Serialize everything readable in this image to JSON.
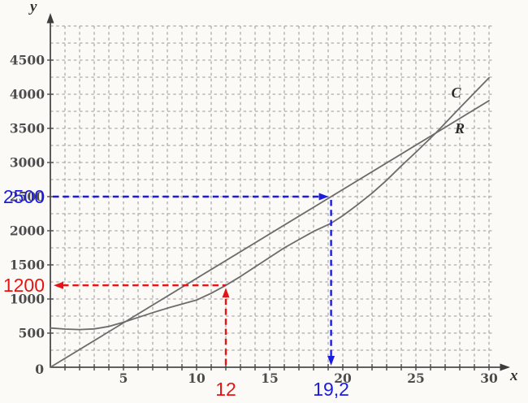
{
  "chart_data": {
    "type": "line",
    "title": "",
    "xlabel": "x",
    "ylabel": "y",
    "xlim": [
      0,
      31
    ],
    "ylim": [
      0,
      5050
    ],
    "x_tick_labels": [
      5,
      10,
      15,
      20,
      25,
      30
    ],
    "y_tick_labels": [
      0,
      500,
      1000,
      1500,
      2000,
      2500,
      3000,
      3500,
      4000,
      4500
    ],
    "x_grid_step": 1,
    "y_grid_step": 250,
    "x_grid_max": 30,
    "y_grid_max": 5000,
    "grid": true,
    "legend_position": "on-curve",
    "colors": {
      "grid": "#acacac",
      "axis": "#4a4a4a",
      "curves": "#6c6c6c",
      "annotation_red": "#e61414",
      "annotation_blue": "#1c1ce0"
    },
    "series": [
      {
        "name": "C",
        "label": "C",
        "style": "curve",
        "color": "#6c6c6c",
        "label_pos": {
          "x": 27.75,
          "y": 3955
        },
        "points": [
          [
            0,
            575
          ],
          [
            1,
            560
          ],
          [
            2,
            552
          ],
          [
            3,
            562
          ],
          [
            4,
            598
          ],
          [
            5,
            660
          ],
          [
            6,
            730
          ],
          [
            7,
            800
          ],
          [
            8,
            865
          ],
          [
            9,
            925
          ],
          [
            10,
            985
          ],
          [
            11,
            1085
          ],
          [
            12,
            1200
          ],
          [
            13,
            1330
          ],
          [
            14,
            1470
          ],
          [
            15,
            1610
          ],
          [
            16,
            1750
          ],
          [
            17,
            1870
          ],
          [
            18,
            1990
          ],
          [
            19.2,
            2110
          ],
          [
            20,
            2220
          ],
          [
            21,
            2380
          ],
          [
            22,
            2550
          ],
          [
            23,
            2740
          ],
          [
            24,
            2950
          ],
          [
            25,
            3150
          ],
          [
            26.4,
            3440
          ],
          [
            28,
            3800
          ],
          [
            30,
            4240
          ]
        ]
      },
      {
        "name": "R",
        "label": "R",
        "style": "line",
        "color": "#6c6c6c",
        "label_pos": {
          "x": 28.0,
          "y": 3430
        },
        "points": [
          [
            0,
            0
          ],
          [
            30,
            3906
          ]
        ]
      }
    ],
    "annotations": [
      {
        "name": "point-on-C",
        "color": "#e61414",
        "x": 12,
        "y": 1200,
        "x_label": "12",
        "y_label": "1200",
        "h_arrow_dir": "left",
        "v_arrow_dir": "up"
      },
      {
        "name": "point-on-R",
        "color": "#1c1ce0",
        "x": 19.2,
        "y": 2500,
        "x_label": "19,2",
        "y_label": "2500",
        "h_arrow_dir": "right",
        "v_arrow_dir": "down"
      }
    ]
  }
}
